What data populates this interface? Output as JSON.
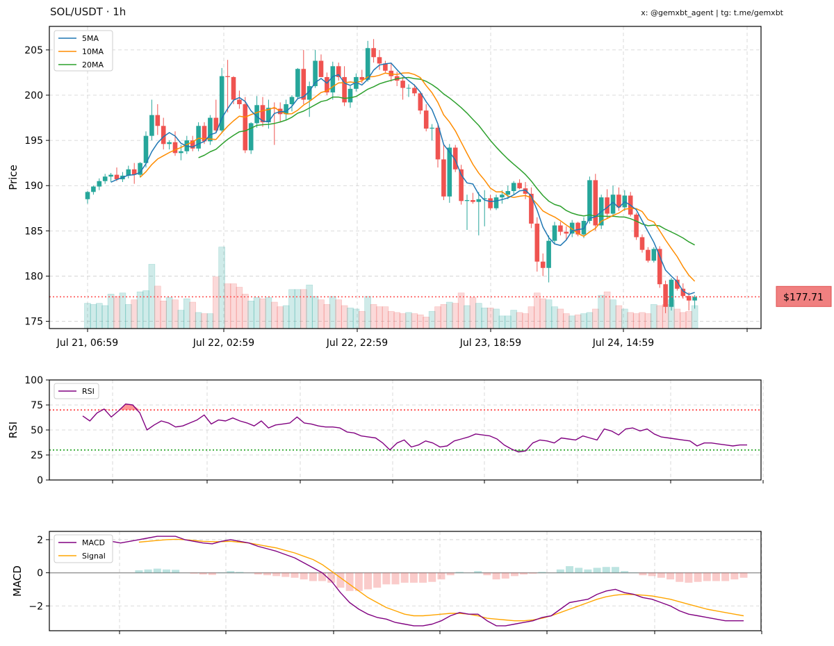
{
  "header": {
    "title": "SOL/USDT · 1h",
    "credit": "x: @gemxbt_agent | tg: t.me/gemxbt"
  },
  "colors": {
    "up": "#26a69a",
    "down": "#ef5350",
    "ma5": "#1f77b4",
    "ma10": "#ff8c00",
    "ma20": "#2ca02c",
    "rsi": "#800080",
    "macd": "#800080",
    "signal": "#ffa500",
    "price_line": "#ff5555"
  },
  "price_panel": {
    "ylabel": "Price",
    "ylim": [
      174.2,
      207.6
    ],
    "yticks": [
      "175",
      "180",
      "185",
      "190",
      "195",
      "200",
      "205"
    ],
    "xticks": [
      "Jul 21, 06:59",
      "Jul 22, 02:59",
      "Jul 22, 22:59",
      "Jul 23, 18:59",
      "Jul 24, 14:59"
    ],
    "last_price": 177.71,
    "last_price_label": "$177.71",
    "legend": [
      "5MA",
      "10MA",
      "20MA"
    ],
    "volume_max": 100
  },
  "rsi_panel": {
    "ylabel": "RSI",
    "ylim": [
      0,
      100
    ],
    "yticks": [
      "0",
      "25",
      "50",
      "75",
      "100"
    ],
    "overbought": 70,
    "oversold": 30,
    "legend": [
      "RSI"
    ]
  },
  "macd_panel": {
    "ylabel": "MACD",
    "ylim": [
      -3.5,
      2.5
    ],
    "yticks": [
      "2",
      "0",
      "−2"
    ],
    "legend": [
      "MACD",
      "Signal"
    ]
  },
  "chart_data": {
    "type": "candlestick",
    "interval": "1h",
    "candles": [
      [
        188.5,
        189.4,
        188.0,
        189.3
      ],
      [
        189.3,
        190.0,
        189.0,
        189.9
      ],
      [
        189.9,
        190.8,
        189.5,
        190.5
      ],
      [
        190.5,
        191.3,
        190.2,
        191.0
      ],
      [
        191.0,
        191.4,
        190.4,
        191.2
      ],
      [
        191.2,
        192.0,
        190.5,
        190.7
      ],
      [
        190.7,
        191.5,
        190.4,
        191.1
      ],
      [
        191.1,
        192.2,
        190.8,
        191.8
      ],
      [
        191.8,
        192.5,
        190.2,
        191.2
      ],
      [
        191.2,
        192.6,
        190.9,
        192.5
      ],
      [
        192.5,
        196.0,
        192.0,
        195.5
      ],
      [
        195.5,
        199.5,
        195.0,
        197.8
      ],
      [
        197.8,
        199.0,
        195.6,
        196.6
      ],
      [
        196.6,
        197.5,
        194.0,
        194.6
      ],
      [
        194.6,
        195.0,
        194.0,
        194.8
      ],
      [
        194.8,
        196.0,
        193.3,
        193.6
      ],
      [
        193.6,
        194.5,
        192.8,
        193.8
      ],
      [
        193.8,
        195.5,
        193.5,
        195.0
      ],
      [
        195.0,
        195.5,
        193.8,
        194.1
      ],
      [
        194.1,
        197.0,
        193.8,
        196.6
      ],
      [
        196.6,
        197.0,
        194.6,
        194.9
      ],
      [
        194.9,
        197.8,
        194.5,
        197.5
      ],
      [
        197.5,
        199.5,
        195.9,
        196.1
      ],
      [
        196.1,
        203.0,
        195.8,
        202.1
      ],
      [
        202.1,
        203.9,
        198.1,
        202.0
      ],
      [
        202.0,
        202.1,
        199.0,
        199.5
      ],
      [
        199.5,
        200.5,
        198.5,
        199.0
      ],
      [
        199.0,
        199.8,
        193.6,
        193.9
      ],
      [
        193.9,
        197.0,
        193.5,
        196.9
      ],
      [
        196.9,
        199.9,
        196.4,
        198.9
      ],
      [
        198.9,
        199.8,
        196.5,
        197.0
      ],
      [
        197.0,
        199.5,
        196.3,
        198.6
      ],
      [
        198.6,
        199.2,
        194.5,
        198.5
      ],
      [
        198.5,
        199.2,
        197.0,
        197.9
      ],
      [
        197.9,
        199.5,
        197.3,
        199.0
      ],
      [
        199.0,
        200.0,
        198.2,
        199.8
      ],
      [
        199.8,
        203.0,
        199.6,
        202.9
      ],
      [
        202.9,
        205.0,
        199.0,
        199.5
      ],
      [
        199.5,
        201.5,
        197.6,
        201.0
      ],
      [
        201.0,
        205.0,
        200.8,
        203.8
      ],
      [
        203.8,
        204.5,
        202.0,
        202.0
      ],
      [
        202.0,
        202.5,
        200.0,
        200.3
      ],
      [
        200.3,
        203.7,
        199.5,
        203.2
      ],
      [
        203.2,
        203.6,
        201.6,
        202.0
      ],
      [
        202.0,
        203.2,
        198.8,
        199.2
      ],
      [
        199.2,
        201.0,
        198.6,
        200.7
      ],
      [
        200.7,
        202.4,
        200.4,
        202.0
      ],
      [
        202.0,
        202.8,
        201.3,
        201.7
      ],
      [
        201.7,
        206.0,
        201.5,
        205.2
      ],
      [
        205.2,
        206.2,
        203.6,
        204.2
      ],
      [
        204.2,
        205.0,
        202.8,
        203.5
      ],
      [
        203.5,
        203.8,
        202.5,
        202.7
      ],
      [
        202.7,
        203.5,
        201.5,
        202.1
      ],
      [
        202.1,
        202.6,
        201.0,
        201.6
      ],
      [
        201.6,
        202.0,
        199.5,
        200.8
      ],
      [
        200.8,
        201.2,
        199.8,
        200.8
      ],
      [
        200.8,
        201.2,
        199.9,
        200.2
      ],
      [
        200.2,
        200.4,
        197.9,
        198.3
      ],
      [
        198.3,
        199.0,
        196.0,
        196.3
      ],
      [
        196.3,
        196.8,
        195.0,
        196.4
      ],
      [
        196.4,
        196.7,
        192.0,
        192.9
      ],
      [
        192.9,
        194.5,
        188.4,
        188.8
      ],
      [
        188.8,
        194.6,
        188.1,
        194.2
      ],
      [
        194.2,
        194.5,
        191.5,
        191.8
      ],
      [
        191.8,
        192.3,
        187.9,
        188.3
      ],
      [
        188.3,
        189.0,
        185.1,
        188.4
      ],
      [
        188.4,
        189.2,
        188.0,
        188.2
      ],
      [
        188.2,
        189.3,
        184.5,
        188.5
      ],
      [
        188.5,
        189.5,
        185.5,
        188.6
      ],
      [
        188.6,
        189.0,
        187.3,
        187.5
      ],
      [
        187.5,
        189.0,
        187.3,
        188.7
      ],
      [
        188.7,
        189.5,
        188.0,
        189.0
      ],
      [
        189.0,
        190.0,
        188.5,
        189.4
      ],
      [
        189.4,
        190.5,
        189.0,
        190.3
      ],
      [
        190.3,
        190.7,
        189.6,
        189.7
      ],
      [
        189.7,
        190.4,
        188.5,
        189.1
      ],
      [
        189.1,
        189.8,
        185.3,
        185.8
      ],
      [
        185.8,
        186.5,
        180.5,
        181.6
      ],
      [
        181.6,
        182.5,
        180.0,
        180.9
      ],
      [
        180.9,
        184.5,
        179.3,
        183.9
      ],
      [
        183.9,
        186.0,
        183.5,
        185.6
      ],
      [
        185.6,
        186.0,
        184.5,
        184.9
      ],
      [
        184.9,
        185.5,
        184.0,
        184.7
      ],
      [
        184.7,
        186.2,
        184.3,
        185.9
      ],
      [
        185.9,
        186.0,
        184.4,
        184.6
      ],
      [
        184.6,
        186.5,
        184.2,
        186.1
      ],
      [
        186.1,
        191.0,
        185.8,
        190.6
      ],
      [
        190.6,
        191.3,
        185.0,
        185.6
      ],
      [
        185.6,
        189.0,
        185.2,
        188.7
      ],
      [
        188.7,
        189.6,
        186.4,
        186.9
      ],
      [
        186.9,
        190.0,
        186.6,
        189.0
      ],
      [
        189.0,
        189.8,
        187.2,
        187.6
      ],
      [
        187.6,
        189.5,
        187.2,
        188.9
      ],
      [
        188.9,
        189.3,
        186.6,
        186.8
      ],
      [
        186.8,
        187.0,
        184.0,
        184.3
      ],
      [
        184.3,
        184.6,
        182.6,
        182.9
      ],
      [
        182.9,
        183.2,
        181.5,
        181.7
      ],
      [
        181.7,
        183.2,
        181.5,
        183.0
      ],
      [
        183.0,
        183.3,
        178.7,
        179.1
      ],
      [
        179.1,
        179.5,
        175.9,
        176.6
      ],
      [
        176.6,
        179.8,
        176.2,
        179.6
      ],
      [
        179.6,
        180.0,
        178.4,
        178.6
      ],
      [
        178.6,
        179.2,
        177.5,
        177.8
      ],
      [
        177.8,
        178.2,
        176.2,
        177.3
      ],
      [
        177.3,
        177.9,
        176.4,
        177.7
      ]
    ],
    "volume": [
      22,
      21,
      22,
      20,
      30,
      28,
      31,
      21,
      25,
      32,
      33,
      56,
      37,
      24,
      27,
      25,
      16,
      26,
      23,
      14,
      13,
      13,
      45,
      71,
      39,
      39,
      36,
      30,
      24,
      27,
      26,
      27,
      23,
      19,
      20,
      34,
      34,
      34,
      38,
      28,
      25,
      21,
      28,
      25,
      20,
      18,
      17,
      15,
      28,
      21,
      19,
      19,
      15,
      14,
      13,
      14,
      13,
      12,
      10,
      15,
      19,
      21,
      23,
      22,
      31,
      20,
      27,
      22,
      18,
      18,
      17,
      11,
      11,
      16,
      14,
      13,
      19,
      31,
      26,
      25,
      19,
      17,
      13,
      11,
      12,
      13,
      14,
      17,
      29,
      32,
      25,
      20,
      17,
      14,
      13,
      14,
      13,
      21,
      20,
      21,
      25,
      17,
      14,
      15,
      20
    ],
    "rsi": [
      64,
      59,
      67,
      71,
      63,
      69,
      76,
      75,
      67,
      50,
      55,
      59,
      57,
      53,
      54,
      57,
      60,
      65,
      56,
      60,
      59,
      62,
      59,
      57,
      54,
      59,
      52,
      55,
      56,
      57,
      63,
      57,
      56,
      54,
      53,
      53,
      52,
      48,
      47,
      44,
      43,
      42,
      37,
      30,
      37,
      40,
      33,
      35,
      39,
      37,
      33,
      34,
      39,
      41,
      43,
      46,
      45,
      44,
      41,
      35,
      31,
      28,
      29,
      37,
      40,
      39,
      37,
      42,
      41,
      40,
      44,
      42,
      40,
      51,
      49,
      45,
      51,
      52,
      49,
      51,
      46,
      43,
      42,
      41,
      40,
      39,
      34,
      37,
      37,
      36,
      35,
      34,
      35,
      35
    ],
    "macd": [
      1.6,
      1.7,
      1.9,
      1.8,
      1.9,
      2.0,
      2.1,
      2.2,
      2.2,
      2.2,
      2.0,
      1.9,
      1.8,
      1.75,
      1.9,
      2.0,
      1.9,
      1.8,
      1.6,
      1.45,
      1.3,
      1.1,
      0.9,
      0.6,
      0.3,
      0.0,
      -0.5,
      -1.2,
      -1.8,
      -2.2,
      -2.5,
      -2.7,
      -2.8,
      -3.0,
      -3.1,
      -3.2,
      -3.2,
      -3.1,
      -2.9,
      -2.6,
      -2.4,
      -2.5,
      -2.5,
      -2.9,
      -3.2,
      -3.2,
      -3.1,
      -3.0,
      -2.9,
      -2.7,
      -2.6,
      -2.2,
      -1.8,
      -1.7,
      -1.6,
      -1.3,
      -1.1,
      -1.0,
      -1.2,
      -1.3,
      -1.5,
      -1.6,
      -1.8,
      -2.0,
      -2.3,
      -2.5,
      -2.6,
      -2.7,
      -2.8,
      -2.9,
      -2.9,
      -2.9
    ],
    "signal": [
      null,
      null,
      null,
      null,
      null,
      1.85,
      1.9,
      1.95,
      2.0,
      2.02,
      2.0,
      1.95,
      1.9,
      1.88,
      1.88,
      1.9,
      1.85,
      1.8,
      1.7,
      1.6,
      1.5,
      1.35,
      1.2,
      1.0,
      0.8,
      0.5,
      0.1,
      -0.3,
      -0.7,
      -1.1,
      -1.5,
      -1.8,
      -2.1,
      -2.3,
      -2.5,
      -2.6,
      -2.6,
      -2.55,
      -2.5,
      -2.45,
      -2.45,
      -2.5,
      -2.6,
      -2.75,
      -2.8,
      -2.85,
      -2.9,
      -2.9,
      -2.85,
      -2.75,
      -2.6,
      -2.4,
      -2.2,
      -2.0,
      -1.8,
      -1.6,
      -1.45,
      -1.35,
      -1.3,
      -1.32,
      -1.35,
      -1.4,
      -1.5,
      -1.6,
      -1.75,
      -1.9,
      -2.05,
      -2.2,
      -2.3,
      -2.4,
      -2.5,
      -2.6
    ]
  }
}
